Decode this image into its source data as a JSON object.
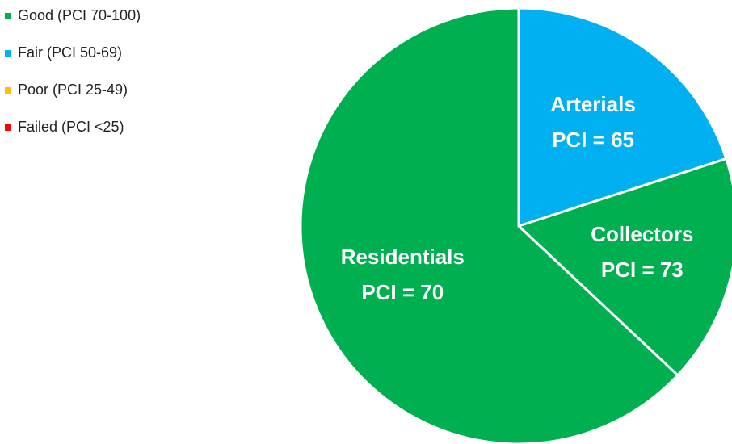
{
  "chart_data": {
    "type": "pie",
    "categories": [
      "Arterials",
      "Collectors",
      "Residentials"
    ],
    "values": [
      20,
      17,
      63
    ],
    "colors": [
      "#00b0f0",
      "#00b050",
      "#00b050"
    ],
    "slice_labels": [
      "PCI = 65",
      "PCI = 73",
      "PCI = 70"
    ],
    "legend": [
      {
        "name": "Good (PCI 70-100)",
        "color": "#00b050"
      },
      {
        "name": "Fair (PCI 50-69)",
        "color": "#00b0f0"
      },
      {
        "name": "Poor (PCI 25-49)",
        "color": "#ffc000"
      },
      {
        "name": "Failed (PCI <25)",
        "color": "#ff0000"
      }
    ],
    "legend_position": "upper left"
  }
}
